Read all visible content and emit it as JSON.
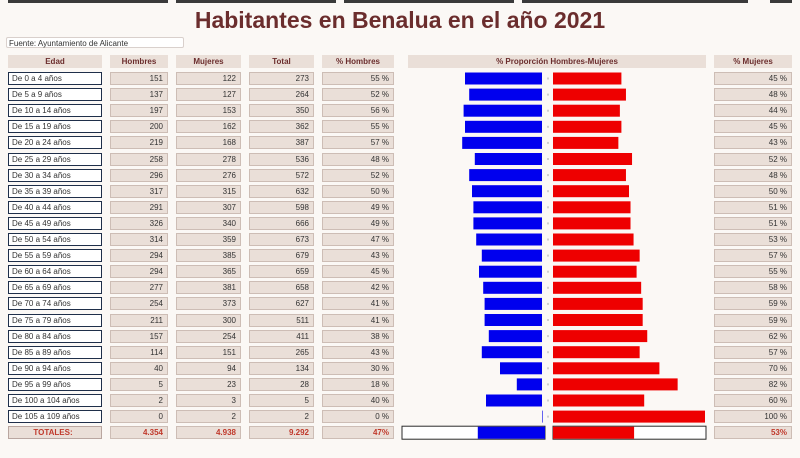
{
  "title": "Habitantes en Benalua en el año 2021",
  "source": "Fuente: Ayuntamiento de Alicante",
  "headers": {
    "edad": "Edad",
    "hombres": "Hombres",
    "mujeres": "Mujeres",
    "total": "Total",
    "pct_hombres": "% Hombres",
    "proporcion": "% Proporción Hombres-Mujeres",
    "pct_mujeres": "% Mujeres"
  },
  "rows": [
    {
      "edad": "De 0 a 4 años",
      "hombres": "151",
      "mujeres": "122",
      "total": "273",
      "pct_hombres": "55 %",
      "pct_mujeres": "45 %"
    },
    {
      "edad": "De 5 a 9 años",
      "hombres": "137",
      "mujeres": "127",
      "total": "264",
      "pct_hombres": "52 %",
      "pct_mujeres": "48 %"
    },
    {
      "edad": "De 10 a 14 años",
      "hombres": "197",
      "mujeres": "153",
      "total": "350",
      "pct_hombres": "56 %",
      "pct_mujeres": "44 %"
    },
    {
      "edad": "De 15 a 19 años",
      "hombres": "200",
      "mujeres": "162",
      "total": "362",
      "pct_hombres": "55 %",
      "pct_mujeres": "45 %"
    },
    {
      "edad": "De 20 a 24 años",
      "hombres": "219",
      "mujeres": "168",
      "total": "387",
      "pct_hombres": "57 %",
      "pct_mujeres": "43 %"
    },
    {
      "edad": "De 25 a 29 años",
      "hombres": "258",
      "mujeres": "278",
      "total": "536",
      "pct_hombres": "48 %",
      "pct_mujeres": "52 %"
    },
    {
      "edad": "De 30 a 34 años",
      "hombres": "296",
      "mujeres": "276",
      "total": "572",
      "pct_hombres": "52 %",
      "pct_mujeres": "48 %"
    },
    {
      "edad": "De 35 a 39 años",
      "hombres": "317",
      "mujeres": "315",
      "total": "632",
      "pct_hombres": "50 %",
      "pct_mujeres": "50 %"
    },
    {
      "edad": "De 40 a 44 años",
      "hombres": "291",
      "mujeres": "307",
      "total": "598",
      "pct_hombres": "49 %",
      "pct_mujeres": "51 %"
    },
    {
      "edad": "De 45 a 49 años",
      "hombres": "326",
      "mujeres": "340",
      "total": "666",
      "pct_hombres": "49 %",
      "pct_mujeres": "51 %"
    },
    {
      "edad": "De 50 a 54 años",
      "hombres": "314",
      "mujeres": "359",
      "total": "673",
      "pct_hombres": "47 %",
      "pct_mujeres": "53 %"
    },
    {
      "edad": "De 55 a 59 años",
      "hombres": "294",
      "mujeres": "385",
      "total": "679",
      "pct_hombres": "43 %",
      "pct_mujeres": "57 %"
    },
    {
      "edad": "De 60 a 64 años",
      "hombres": "294",
      "mujeres": "365",
      "total": "659",
      "pct_hombres": "45 %",
      "pct_mujeres": "55 %"
    },
    {
      "edad": "De 65 a 69 años",
      "hombres": "277",
      "mujeres": "381",
      "total": "658",
      "pct_hombres": "42 %",
      "pct_mujeres": "58 %"
    },
    {
      "edad": "De 70 a 74 años",
      "hombres": "254",
      "mujeres": "373",
      "total": "627",
      "pct_hombres": "41 %",
      "pct_mujeres": "59 %"
    },
    {
      "edad": "De 75 a 79 años",
      "hombres": "211",
      "mujeres": "300",
      "total": "511",
      "pct_hombres": "41 %",
      "pct_mujeres": "59 %"
    },
    {
      "edad": "De 80 a 84 años",
      "hombres": "157",
      "mujeres": "254",
      "total": "411",
      "pct_hombres": "38 %",
      "pct_mujeres": "62 %"
    },
    {
      "edad": "De 85 a 89 años",
      "hombres": "114",
      "mujeres": "151",
      "total": "265",
      "pct_hombres": "43 %",
      "pct_mujeres": "57 %"
    },
    {
      "edad": "De 90 a 94 años",
      "hombres": "40",
      "mujeres": "94",
      "total": "134",
      "pct_hombres": "30 %",
      "pct_mujeres": "70 %"
    },
    {
      "edad": "De 95 a 99 años",
      "hombres": "5",
      "mujeres": "23",
      "total": "28",
      "pct_hombres": "18 %",
      "pct_mujeres": "82 %"
    },
    {
      "edad": "De 100 a 104 años",
      "hombres": "2",
      "mujeres": "3",
      "total": "5",
      "pct_hombres": "40 %",
      "pct_mujeres": "60 %"
    },
    {
      "edad": "De 105 a 109 años",
      "hombres": "0",
      "mujeres": "2",
      "total": "2",
      "pct_hombres": "0 %",
      "pct_mujeres": "100 %"
    }
  ],
  "totals": {
    "label": "TOTALES:",
    "hombres": "4.354",
    "mujeres": "4.938",
    "total": "9.292",
    "pct_hombres": "47%",
    "pct_mujeres": "53%"
  },
  "chart_data": {
    "type": "bar",
    "title": "% Proporción Hombres-Mujeres",
    "categories": [
      "De 0 a 4 años",
      "De 5 a 9 años",
      "De 10 a 14 años",
      "De 15 a 19 años",
      "De 20 a 24 años",
      "De 25 a 29 años",
      "De 30 a 34 años",
      "De 35 a 39 años",
      "De 40 a 44 años",
      "De 45 a 49 años",
      "De 50 a 54 años",
      "De 55 a 59 años",
      "De 60 a 64 años",
      "De 65 a 69 años",
      "De 70 a 74 años",
      "De 75 a 79 años",
      "De 80 a 84 años",
      "De 85 a 89 años",
      "De 90 a 94 años",
      "De 95 a 99 años",
      "De 100 a 104 años",
      "De 105 a 109 años"
    ],
    "series": [
      {
        "name": "Hombres",
        "color": "#0000ee",
        "values": [
          55,
          52,
          56,
          55,
          57,
          48,
          52,
          50,
          49,
          49,
          47,
          43,
          45,
          42,
          41,
          41,
          38,
          43,
          30,
          18,
          40,
          0
        ]
      },
      {
        "name": "Mujeres",
        "color": "#ee0000",
        "values": [
          45,
          48,
          44,
          45,
          43,
          52,
          48,
          50,
          51,
          51,
          53,
          57,
          55,
          58,
          59,
          59,
          62,
          57,
          70,
          82,
          60,
          100
        ]
      }
    ],
    "totals": {
      "hombres": 47,
      "mujeres": 53
    },
    "xlim": [
      0,
      100
    ]
  }
}
